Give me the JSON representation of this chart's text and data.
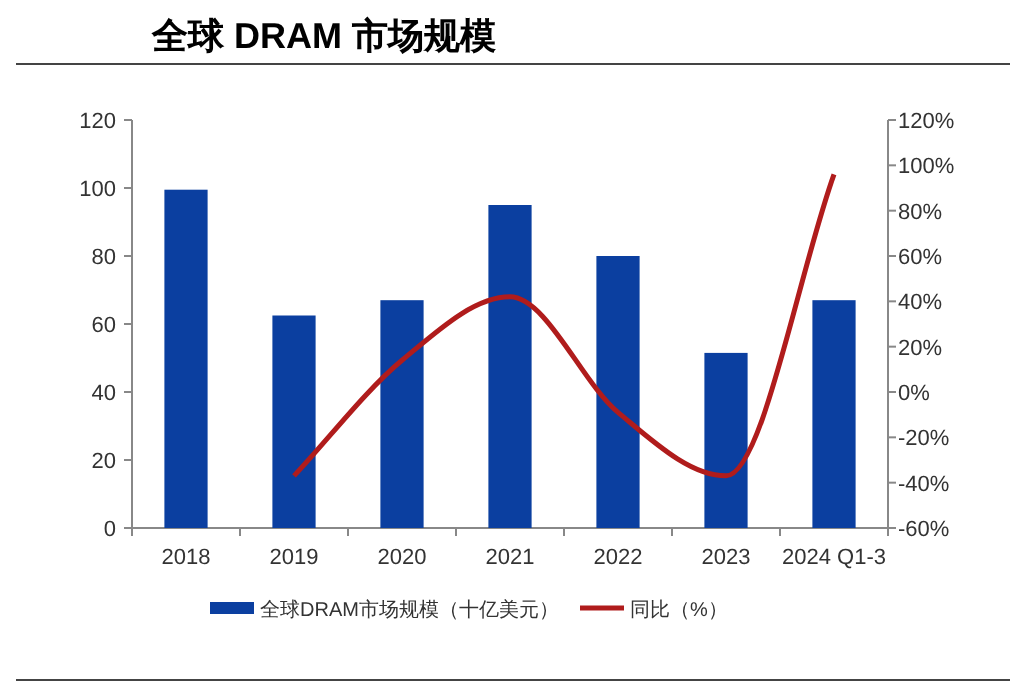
{
  "chart_data": {
    "type": "bar",
    "title": "全球 DRAM 市场规模",
    "categories": [
      "2018",
      "2019",
      "2020",
      "2021",
      "2022",
      "2023",
      "2024 Q1-3"
    ],
    "series": [
      {
        "name": "全球DRAM市场规模（十亿美元）",
        "color": "#0b3fa0",
        "values": [
          99.5,
          62.5,
          67,
          95,
          80,
          51.5,
          67
        ]
      },
      {
        "name": "同比（%）",
        "type": "line",
        "axis": "y2",
        "color": "#b01c1c",
        "values": [
          null,
          -37,
          14,
          42,
          -9,
          -37,
          96
        ]
      }
    ],
    "ylim": [
      0,
      120
    ],
    "yticks": [
      0,
      20,
      40,
      60,
      80,
      100,
      120
    ],
    "y2lim": [
      -60,
      120
    ],
    "y2ticks": [
      {
        "value": -60,
        "label": "-60%"
      },
      {
        "value": -40,
        "label": "-40%"
      },
      {
        "value": -20,
        "label": "-20%"
      },
      {
        "value": 0,
        "label": "0%"
      },
      {
        "value": 20,
        "label": "20%"
      },
      {
        "value": 40,
        "label": "40%"
      },
      {
        "value": 60,
        "label": "60%"
      },
      {
        "value": 80,
        "label": "80%"
      },
      {
        "value": 100,
        "label": "100%"
      },
      {
        "value": 120,
        "label": "120%"
      }
    ],
    "grid": false,
    "legend": "bottom",
    "marker": "none",
    "line_style": "solid"
  }
}
